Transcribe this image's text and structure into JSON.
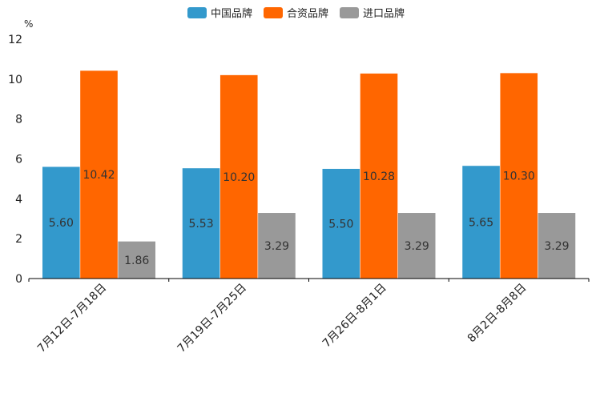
{
  "chart_data": {
    "type": "bar",
    "unit": "%",
    "categories": [
      "7月12日-7月18日",
      "7月19日-7月25日",
      "7月26日-8月1日",
      "8月2日-8月8日"
    ],
    "series": [
      {
        "name": "中国品牌",
        "color": "#3399cc",
        "values": [
          5.6,
          5.53,
          5.5,
          5.65
        ],
        "labels": [
          "5.60",
          "5.53",
          "5.50",
          "5.65"
        ]
      },
      {
        "name": "合资品牌",
        "color": "#ff6600",
        "values": [
          10.42,
          10.2,
          10.28,
          10.3
        ],
        "labels": [
          "10.42",
          "10.20",
          "10.28",
          "10.30"
        ]
      },
      {
        "name": "进口品牌",
        "color": "#999999",
        "values": [
          1.86,
          3.29,
          3.29,
          3.29
        ],
        "labels": [
          "1.86",
          "3.29",
          "3.29",
          "3.29"
        ]
      }
    ],
    "ylim": [
      0,
      12
    ],
    "yticks": [
      "0",
      "2",
      "4",
      "6",
      "8",
      "10",
      "12"
    ],
    "legend_position": "top-center",
    "grid": false
  }
}
